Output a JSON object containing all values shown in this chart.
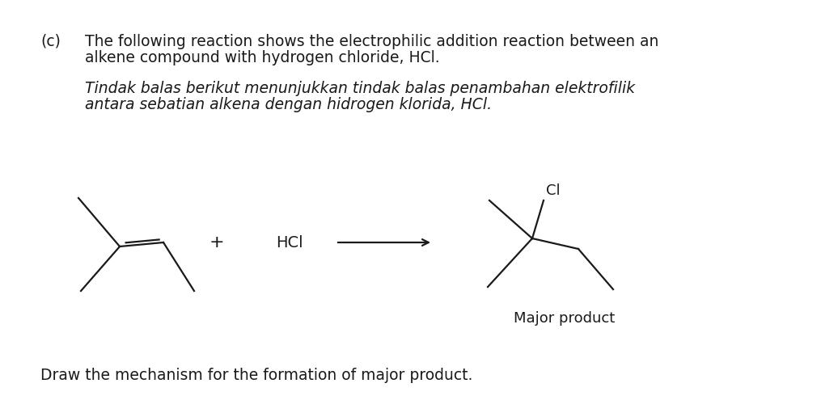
{
  "bg_color": "#ffffff",
  "text_color": "#1a1a1a",
  "line_color": "#1a1a1a",
  "label_c": "(c)",
  "line1_en": "The following reaction shows the electrophilic addition reaction between an",
  "line2_en": "alkene compound with hydrogen chloride, HCl.",
  "line1_ms": "Tindak balas berikut menunjukkan tindak balas penambahan elektrofilik",
  "line2_ms": "antara sebatian alkena dengan hidrogen klorida, HCl.",
  "plus_text": "+",
  "hcl_text": "HCl",
  "cl_text": "Cl",
  "major_product_text": "Major product",
  "draw_mech_text": "Draw the mechanism for the formation of major product.",
  "fontsize_main": 13.5,
  "fontsize_label": 13.5,
  "fontsize_chem": 14,
  "fontsize_cl": 13,
  "fontsize_major": 13,
  "fontsize_draw": 13.5
}
